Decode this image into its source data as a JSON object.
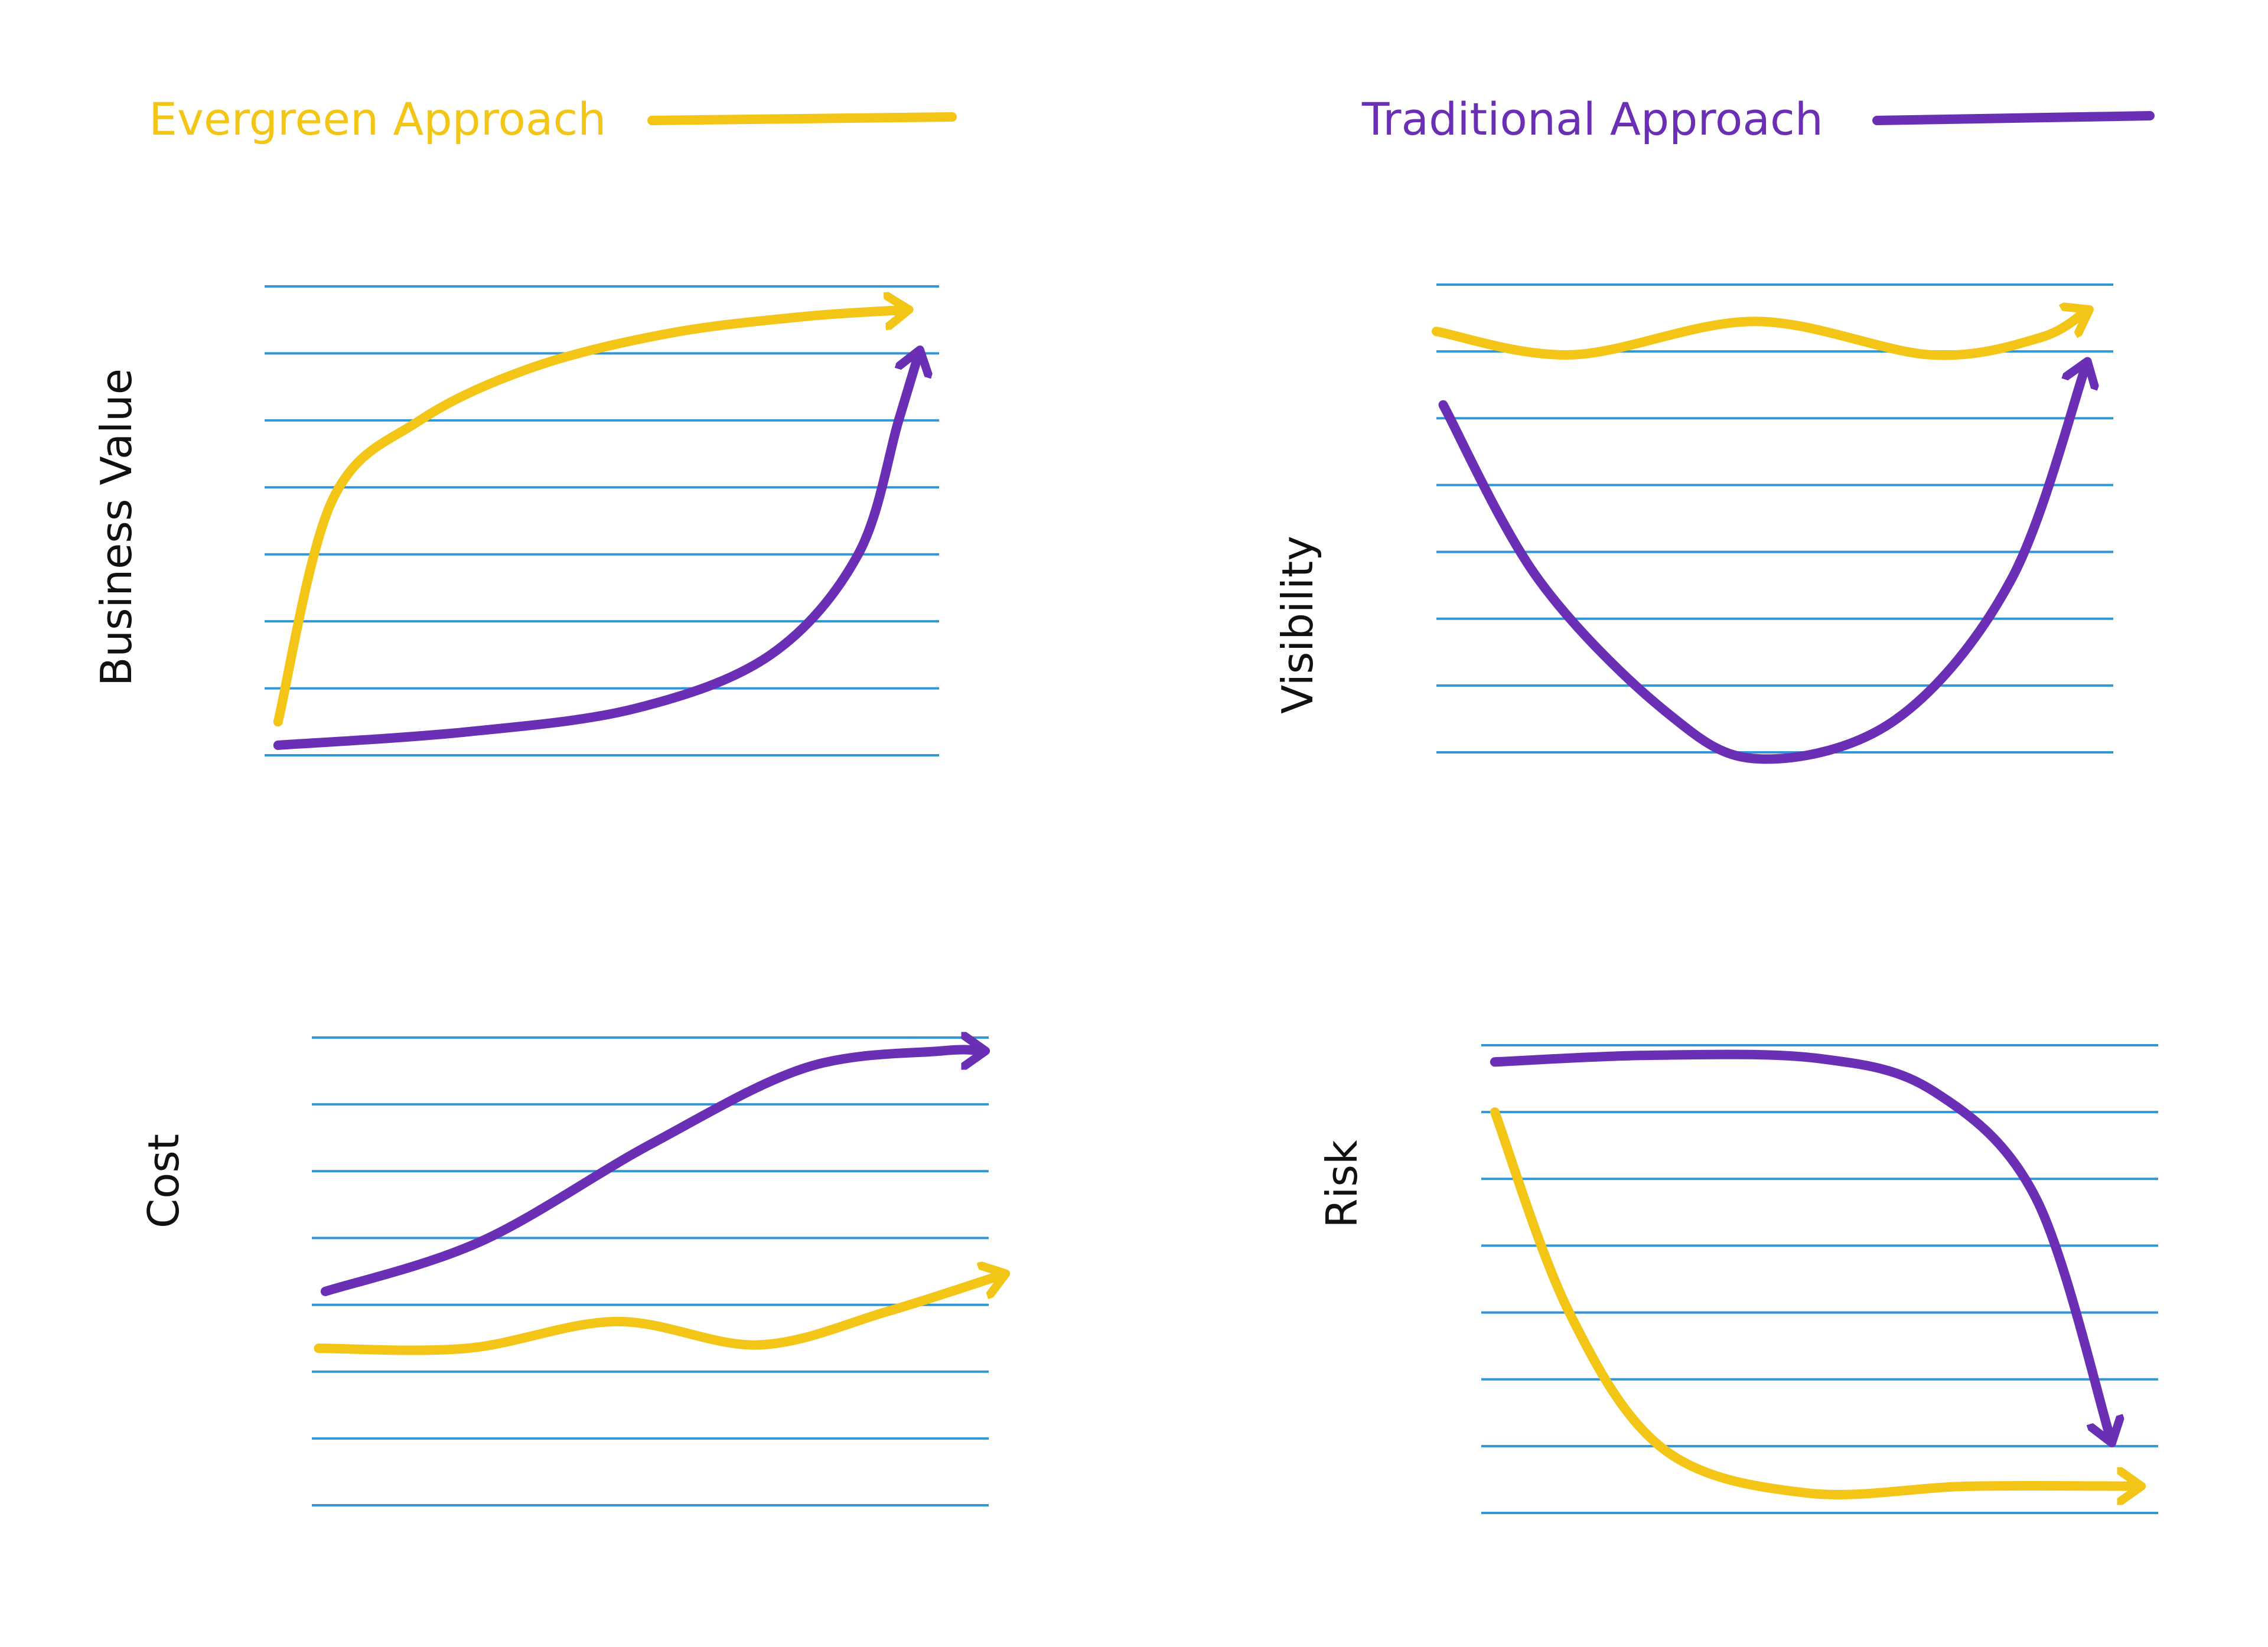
{
  "colors": {
    "evergreen": "#f2c516",
    "traditional": "#6a2fb5",
    "grid": "#2f97d6"
  },
  "legend": [
    {
      "key": "evergreen",
      "label": "Evergreen Approach"
    },
    {
      "key": "traditional",
      "label": "Traditional Approach"
    }
  ],
  "chart_data": [
    {
      "type": "line",
      "ylabel": "Business Value",
      "ylim": [
        0,
        7
      ],
      "xlim": [
        0,
        10
      ],
      "grid": true,
      "series": [
        {
          "name": "Evergreen Approach",
          "key": "evergreen",
          "x": [
            0.2,
            1,
            2.3,
            4,
            6,
            8,
            9.5
          ],
          "y": [
            0.5,
            3.8,
            5.0,
            5.8,
            6.3,
            6.55,
            6.65
          ]
        },
        {
          "name": "Traditional Approach",
          "key": "traditional",
          "x": [
            0.2,
            3,
            5.5,
            7.5,
            8.8,
            9.4,
            9.7
          ],
          "y": [
            0.15,
            0.35,
            0.7,
            1.5,
            3.0,
            5.0,
            6.0
          ]
        }
      ]
    },
    {
      "type": "line",
      "ylabel": "Visibility",
      "ylim": [
        0,
        7
      ],
      "xlim": [
        0,
        10
      ],
      "grid": true,
      "series": [
        {
          "name": "Evergreen Approach",
          "key": "evergreen",
          "x": [
            0,
            2,
            4.7,
            7.3,
            8.9,
            9.6
          ],
          "y": [
            6.3,
            5.95,
            6.45,
            5.95,
            6.2,
            6.6
          ]
        },
        {
          "name": "Traditional Approach",
          "key": "traditional",
          "x": [
            0.1,
            1.5,
            3.4,
            4.8,
            6.8,
            8.5,
            9.6
          ],
          "y": [
            5.2,
            2.6,
            0.6,
            -0.1,
            0.5,
            2.6,
            5.8
          ]
        }
      ]
    },
    {
      "type": "line",
      "ylabel": "Cost",
      "ylim": [
        0,
        7
      ],
      "xlim": [
        0,
        10
      ],
      "grid": true,
      "series": [
        {
          "name": "Evergreen Approach",
          "key": "evergreen",
          "x": [
            0.1,
            2.3,
            4.5,
            6.6,
            8.5,
            10.2
          ],
          "y": [
            2.35,
            2.35,
            2.75,
            2.4,
            2.9,
            3.45
          ]
        },
        {
          "name": "Traditional Approach",
          "key": "traditional",
          "x": [
            0.2,
            2.5,
            5,
            7.3,
            9.3,
            9.9
          ],
          "y": [
            3.2,
            3.95,
            5.4,
            6.55,
            6.8,
            6.8
          ]
        }
      ]
    },
    {
      "type": "line",
      "ylabel": "Risk",
      "ylim": [
        0,
        7
      ],
      "xlim": [
        0,
        10
      ],
      "grid": true,
      "series": [
        {
          "name": "Evergreen Approach",
          "key": "evergreen",
          "x": [
            0.2,
            1.3,
            2.7,
            4.8,
            7.2,
            9.7
          ],
          "y": [
            6.0,
            3.0,
            0.95,
            0.3,
            0.4,
            0.4
          ]
        },
        {
          "name": "Traditional Approach",
          "key": "traditional",
          "x": [
            0.2,
            2.5,
            5,
            6.7,
            8.2,
            9.3
          ],
          "y": [
            6.75,
            6.85,
            6.8,
            6.3,
            4.7,
            1.1
          ]
        }
      ]
    }
  ]
}
